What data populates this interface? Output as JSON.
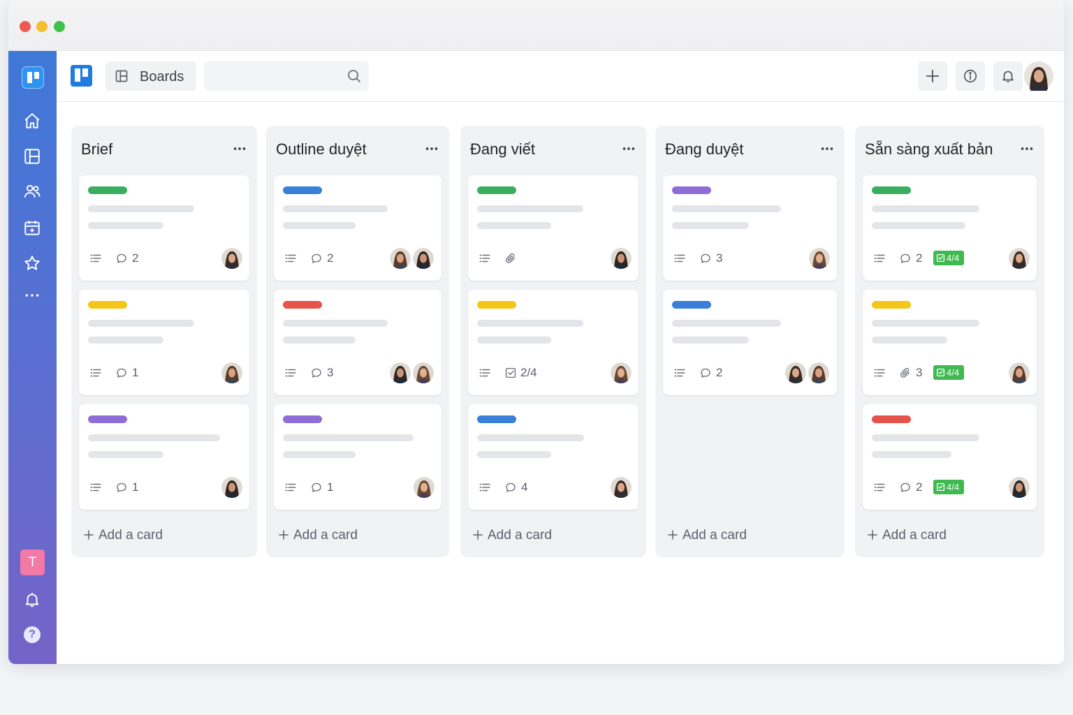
{
  "window": {
    "title": ""
  },
  "topbar": {
    "boards_label": "Boards",
    "search_placeholder": "",
    "buttons": [
      "plus-icon",
      "info-icon",
      "bell-icon"
    ]
  },
  "sidebar": {
    "items": [
      "home-icon",
      "boards-icon",
      "members-icon",
      "calendar-icon",
      "star-icon",
      "more-icon"
    ],
    "workspace_initial": "T",
    "bottom": [
      "bell-icon",
      "help-icon"
    ]
  },
  "colors": {
    "green": "#3aae5f",
    "blue": "#3a7fd8",
    "purple": "#8e6dd6",
    "yellow": "#f5c518",
    "red": "#e5534b",
    "check_green": "#3fb950"
  },
  "lists": [
    {
      "title": "Brief",
      "add_label": "Add a card",
      "cards": [
        {
          "label": "green",
          "meta_icon": "comment-icon",
          "count": "2",
          "checklist": "",
          "avatars": 1
        },
        {
          "label": "yellow",
          "meta_icon": "comment-icon",
          "count": "1",
          "checklist": "",
          "avatars": 1
        },
        {
          "label": "purple",
          "meta_icon": "comment-icon",
          "count": "1",
          "checklist": "",
          "avatars": 1
        }
      ]
    },
    {
      "title": "Outline duyệt",
      "add_label": "Add a card",
      "cards": [
        {
          "label": "blue",
          "meta_icon": "comment-icon",
          "count": "2",
          "checklist": "",
          "avatars": 2
        },
        {
          "label": "red",
          "meta_icon": "comment-icon",
          "count": "3",
          "checklist": "",
          "avatars": 2
        },
        {
          "label": "purple",
          "meta_icon": "comment-icon",
          "count": "1",
          "checklist": "",
          "avatars": 1
        }
      ]
    },
    {
      "title": "Đang viết",
      "add_label": "Add a card",
      "cards": [
        {
          "label": "green",
          "meta_icon": "attachment-icon",
          "count": "",
          "checklist": "",
          "avatars": 1
        },
        {
          "label": "yellow",
          "meta_icon": "checklist-icon",
          "count": "2/4",
          "checklist": "",
          "avatars": 1
        },
        {
          "label": "blue",
          "meta_icon": "comment-icon",
          "count": "4",
          "checklist": "",
          "avatars": 1
        }
      ]
    },
    {
      "title": "Đang duyệt",
      "add_label": "Add a card",
      "cards": [
        {
          "label": "purple",
          "meta_icon": "comment-icon",
          "count": "3",
          "checklist": "",
          "avatars": 1
        },
        {
          "label": "blue",
          "meta_icon": "comment-icon",
          "count": "2",
          "checklist": "",
          "avatars": 2
        }
      ]
    },
    {
      "title": "Sẵn sàng xuất bản",
      "add_label": "Add a card",
      "cards": [
        {
          "label": "green",
          "meta_icon": "comment-icon",
          "count": "2",
          "checklist": "4/4",
          "avatars": 1
        },
        {
          "label": "yellow",
          "meta_icon": "attachment-icon",
          "count": "3",
          "checklist": "4/4",
          "avatars": 1
        },
        {
          "label": "red",
          "meta_icon": "comment-icon",
          "count": "2",
          "checklist": "4/4",
          "avatars": 1
        }
      ]
    }
  ]
}
